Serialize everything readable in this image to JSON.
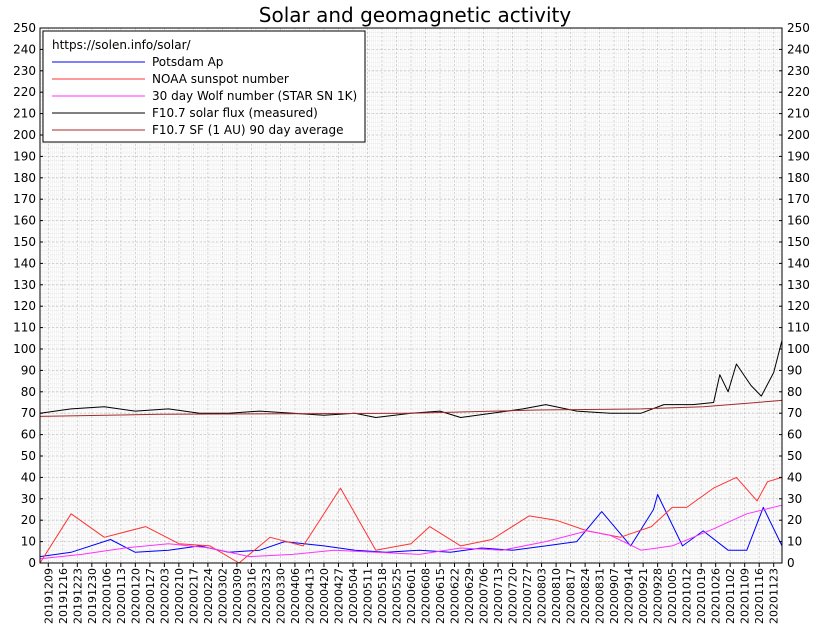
{
  "chart_data": {
    "type": "line",
    "title": "Solar and geomagnetic activity",
    "source_label": "https://solen.info/solar/",
    "ylim": [
      0,
      250
    ],
    "y_ticks": [
      0,
      10,
      20,
      30,
      40,
      50,
      60,
      70,
      80,
      90,
      100,
      110,
      120,
      130,
      140,
      150,
      160,
      170,
      180,
      190,
      200,
      210,
      220,
      230,
      240,
      250
    ],
    "x_start": "2019-12-05",
    "x_end": "2020-11-27",
    "x_tick_labels": [
      "20191209",
      "20191216",
      "20191223",
      "20191230",
      "20200106",
      "20200113",
      "20200120",
      "20200127",
      "20200203",
      "20200210",
      "20200217",
      "20200224",
      "20200302",
      "20200309",
      "20200316",
      "20200323",
      "20200330",
      "20200406",
      "20200413",
      "20200420",
      "20200427",
      "20200504",
      "20200511",
      "20200518",
      "20200525",
      "20200601",
      "20200608",
      "20200615",
      "20200622",
      "20200629",
      "20200706",
      "20200713",
      "20200720",
      "20200727",
      "20200803",
      "20200810",
      "20200817",
      "20200824",
      "20200831",
      "20200907",
      "20200914",
      "20200921",
      "20200928",
      "20201005",
      "20201012",
      "20201019",
      "20201026",
      "20201102",
      "20201109",
      "20201116",
      "20201123"
    ],
    "grid": true,
    "legend_position": "top-left",
    "series": [
      {
        "name": "Potsdam Ap",
        "color": "#0000ff",
        "points": [
          [
            "2019-12-05",
            3
          ],
          [
            "2019-12-20",
            5
          ],
          [
            "2020-01-08",
            11
          ],
          [
            "2020-01-20",
            5
          ],
          [
            "2020-02-05",
            6
          ],
          [
            "2020-02-20",
            8
          ],
          [
            "2020-03-05",
            5
          ],
          [
            "2020-03-20",
            6
          ],
          [
            "2020-04-01",
            10
          ],
          [
            "2020-04-20",
            8
          ],
          [
            "2020-05-05",
            6
          ],
          [
            "2020-05-20",
            5
          ],
          [
            "2020-06-05",
            6
          ],
          [
            "2020-06-20",
            5
          ],
          [
            "2020-07-05",
            7
          ],
          [
            "2020-07-20",
            6
          ],
          [
            "2020-08-05",
            8
          ],
          [
            "2020-08-20",
            10
          ],
          [
            "2020-09-01",
            24
          ],
          [
            "2020-09-15",
            8
          ],
          [
            "2020-09-26",
            25
          ],
          [
            "2020-09-28",
            32
          ],
          [
            "2020-10-10",
            8
          ],
          [
            "2020-10-20",
            15
          ],
          [
            "2020-11-01",
            6
          ],
          [
            "2020-11-10",
            6
          ],
          [
            "2020-11-18",
            26
          ],
          [
            "2020-11-27",
            8
          ]
        ]
      },
      {
        "name": "NOAA sunspot number",
        "color": "#ff3333",
        "points": [
          [
            "2019-12-05",
            0
          ],
          [
            "2019-12-20",
            23
          ],
          [
            "2020-01-05",
            12
          ],
          [
            "2020-01-25",
            17
          ],
          [
            "2020-02-10",
            9
          ],
          [
            "2020-02-25",
            8
          ],
          [
            "2020-03-10",
            0
          ],
          [
            "2020-03-25",
            12
          ],
          [
            "2020-04-10",
            8
          ],
          [
            "2020-04-28",
            35
          ],
          [
            "2020-05-15",
            6
          ],
          [
            "2020-06-01",
            9
          ],
          [
            "2020-06-10",
            17
          ],
          [
            "2020-06-25",
            8
          ],
          [
            "2020-07-10",
            11
          ],
          [
            "2020-07-28",
            22
          ],
          [
            "2020-08-10",
            20
          ],
          [
            "2020-08-25",
            15
          ],
          [
            "2020-09-10",
            12
          ],
          [
            "2020-09-25",
            17
          ],
          [
            "2020-10-05",
            26
          ],
          [
            "2020-10-12",
            26
          ],
          [
            "2020-10-25",
            35
          ],
          [
            "2020-11-05",
            40
          ],
          [
            "2020-11-15",
            29
          ],
          [
            "2020-11-20",
            38
          ],
          [
            "2020-11-27",
            40
          ]
        ]
      },
      {
        "name": "30 day Wolf number (STAR SN 1K)",
        "color": "#ff33ff",
        "points": [
          [
            "2019-12-05",
            2
          ],
          [
            "2019-12-25",
            4
          ],
          [
            "2020-01-15",
            7
          ],
          [
            "2020-02-05",
            9
          ],
          [
            "2020-02-25",
            7
          ],
          [
            "2020-03-15",
            3
          ],
          [
            "2020-04-05",
            4
          ],
          [
            "2020-04-25",
            6
          ],
          [
            "2020-05-15",
            5
          ],
          [
            "2020-06-05",
            4
          ],
          [
            "2020-06-25",
            7
          ],
          [
            "2020-07-15",
            6
          ],
          [
            "2020-08-05",
            10
          ],
          [
            "2020-08-25",
            15
          ],
          [
            "2020-09-05",
            13
          ],
          [
            "2020-09-20",
            6
          ],
          [
            "2020-10-05",
            8
          ],
          [
            "2020-10-25",
            16
          ],
          [
            "2020-11-10",
            23
          ],
          [
            "2020-11-27",
            27
          ]
        ]
      },
      {
        "name": "F10.7 solar flux (measured)",
        "color": "#000000",
        "points": [
          [
            "2019-12-05",
            70
          ],
          [
            "2019-12-20",
            72
          ],
          [
            "2020-01-05",
            73
          ],
          [
            "2020-01-20",
            71
          ],
          [
            "2020-02-05",
            72
          ],
          [
            "2020-02-20",
            70
          ],
          [
            "2020-03-05",
            70
          ],
          [
            "2020-03-20",
            71
          ],
          [
            "2020-04-05",
            70
          ],
          [
            "2020-04-20",
            69
          ],
          [
            "2020-05-05",
            70
          ],
          [
            "2020-05-15",
            68
          ],
          [
            "2020-06-01",
            70
          ],
          [
            "2020-06-15",
            71
          ],
          [
            "2020-06-25",
            68
          ],
          [
            "2020-07-10",
            70
          ],
          [
            "2020-07-25",
            72
          ],
          [
            "2020-08-05",
            74
          ],
          [
            "2020-08-20",
            71
          ],
          [
            "2020-09-05",
            70
          ],
          [
            "2020-09-20",
            70
          ],
          [
            "2020-10-01",
            74
          ],
          [
            "2020-10-15",
            74
          ],
          [
            "2020-10-25",
            75
          ],
          [
            "2020-10-28",
            88
          ],
          [
            "2020-11-01",
            80
          ],
          [
            "2020-11-05",
            93
          ],
          [
            "2020-11-12",
            83
          ],
          [
            "2020-11-17",
            78
          ],
          [
            "2020-11-23",
            89
          ],
          [
            "2020-11-27",
            104
          ]
        ]
      },
      {
        "name": "F10.7 SF (1 AU) 90 day average",
        "color": "#a52a2a",
        "points": [
          [
            "2019-12-05",
            68.5
          ],
          [
            "2020-02-01",
            69.5
          ],
          [
            "2020-04-01",
            69.7
          ],
          [
            "2020-06-01",
            70
          ],
          [
            "2020-08-01",
            71.5
          ],
          [
            "2020-09-20",
            72
          ],
          [
            "2020-10-20",
            73
          ],
          [
            "2020-11-27",
            76
          ]
        ]
      }
    ]
  }
}
